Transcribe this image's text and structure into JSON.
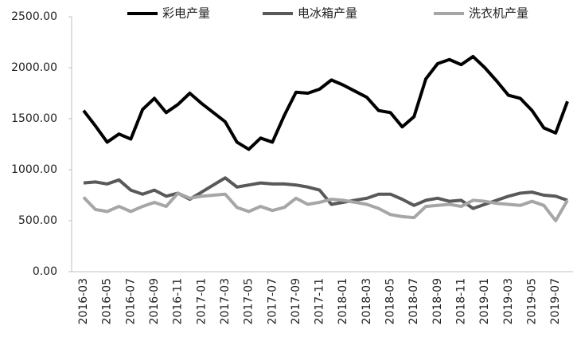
{
  "chart_data": {
    "type": "line",
    "categories": [
      "2016-03",
      null,
      "2016-05",
      null,
      "2016-07",
      null,
      "2016-09",
      null,
      "2016-11",
      null,
      "2017-01",
      null,
      "2017-03",
      null,
      "2017-05",
      null,
      "2017-07",
      null,
      "2017-09",
      null,
      "2017-11",
      null,
      "2018-01",
      null,
      "2018-03",
      null,
      "2018-05",
      null,
      "2018-07",
      null,
      "2018-09",
      null,
      "2018-11",
      null,
      "2019-01",
      null,
      "2019-03",
      null,
      "2019-05",
      null,
      "2019-07",
      null
    ],
    "series": [
      {
        "name": "彩电产量",
        "color": "#000000",
        "values": [
          1580,
          1430,
          1270,
          1350,
          1300,
          1590,
          1700,
          1560,
          1640,
          1750,
          1650,
          1560,
          1470,
          1270,
          1200,
          1310,
          1270,
          1530,
          1760,
          1750,
          1790,
          1880,
          1830,
          1770,
          1710,
          1580,
          1560,
          1420,
          1520,
          1890,
          2040,
          2080,
          2030,
          2110,
          2000,
          1870,
          1730,
          1700,
          1580,
          1410,
          1360,
          1670
        ]
      },
      {
        "name": "电冰箱产量",
        "color": "#595959",
        "values": [
          870,
          880,
          860,
          900,
          800,
          760,
          800,
          740,
          770,
          710,
          780,
          850,
          920,
          830,
          850,
          870,
          860,
          860,
          850,
          830,
          800,
          660,
          680,
          700,
          720,
          760,
          760,
          710,
          650,
          700,
          720,
          690,
          700,
          620,
          660,
          700,
          740,
          770,
          780,
          750,
          740,
          700
        ]
      },
      {
        "name": "洗衣机产量",
        "color": "#a6a6a6",
        "values": [
          730,
          610,
          590,
          640,
          590,
          640,
          680,
          640,
          770,
          720,
          740,
          750,
          760,
          630,
          590,
          640,
          600,
          630,
          720,
          660,
          680,
          710,
          700,
          680,
          660,
          620,
          560,
          540,
          530,
          640,
          650,
          660,
          640,
          700,
          690,
          670,
          660,
          650,
          690,
          650,
          500,
          700
        ]
      }
    ],
    "ylim": [
      0,
      2500
    ],
    "yticks": [
      {
        "value": 0,
        "label": "0.00"
      },
      {
        "value": 500,
        "label": "500.00"
      },
      {
        "value": 1000,
        "label": "1000.00"
      },
      {
        "value": 1500,
        "label": "1500.00"
      },
      {
        "value": 2000,
        "label": "2000.00"
      },
      {
        "value": 2500,
        "label": "2500.00"
      }
    ],
    "legend": "top",
    "grid": false
  }
}
